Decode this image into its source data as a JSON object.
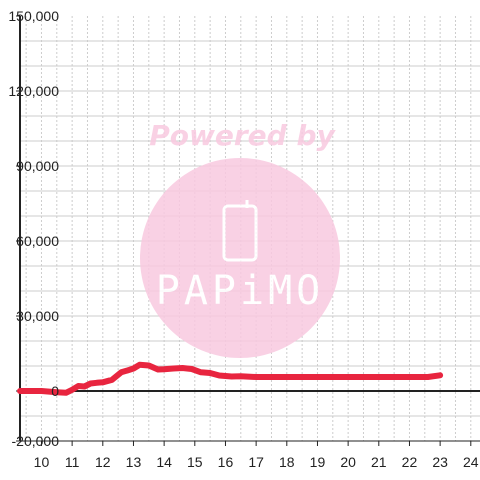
{
  "chart_data": {
    "type": "line",
    "title": "",
    "xlabel": "",
    "ylabel": "",
    "xlim": [
      9.3,
      24.3
    ],
    "ylim": [
      -20000,
      150000
    ],
    "x_ticks": [
      10,
      11,
      12,
      13,
      14,
      15,
      16,
      17,
      18,
      19,
      20,
      21,
      22,
      23,
      24
    ],
    "x_tick_labels": [
      "10",
      "11",
      "12",
      "13",
      "14",
      "15",
      "16",
      "17",
      "18",
      "19",
      "20",
      "21",
      "22",
      "23",
      "24"
    ],
    "y_ticks": [
      -20000,
      0,
      30000,
      60000,
      90000,
      120000,
      150000
    ],
    "y_tick_labels": [
      "-20,000",
      "0",
      "30,000",
      "60,000",
      "90,000",
      "120,000",
      "150,000"
    ],
    "grid": true,
    "legend": "none",
    "series": [
      {
        "color": "#e8253f",
        "x": [
          9.3,
          10.0,
          10.5,
          10.8,
          11.0,
          11.2,
          11.4,
          11.6,
          11.8,
          12.0,
          12.3,
          12.6,
          12.8,
          13.0,
          13.2,
          13.5,
          13.8,
          14.0,
          14.3,
          14.6,
          14.9,
          15.2,
          15.5,
          15.8,
          16.2,
          16.5,
          17.0,
          18.0,
          19.0,
          20.0,
          21.0,
          22.0,
          22.6,
          23.0
        ],
        "values": [
          0,
          0,
          -500,
          -700,
          500,
          2000,
          1800,
          3000,
          3300,
          3500,
          4500,
          7500,
          8200,
          9000,
          10500,
          10200,
          8600,
          8700,
          9000,
          9200,
          8800,
          7500,
          7200,
          6200,
          5800,
          5900,
          5600,
          5600,
          5600,
          5600,
          5600,
          5600,
          5600,
          6300
        ]
      }
    ]
  },
  "watermark": {
    "text": "Powered by",
    "brand": "PAPiMO",
    "color": "#f9c9e0",
    "icon": "phone-icon"
  },
  "colors": {
    "axis": "#222222",
    "grid": "#cccccc",
    "background": "#ffffff"
  }
}
